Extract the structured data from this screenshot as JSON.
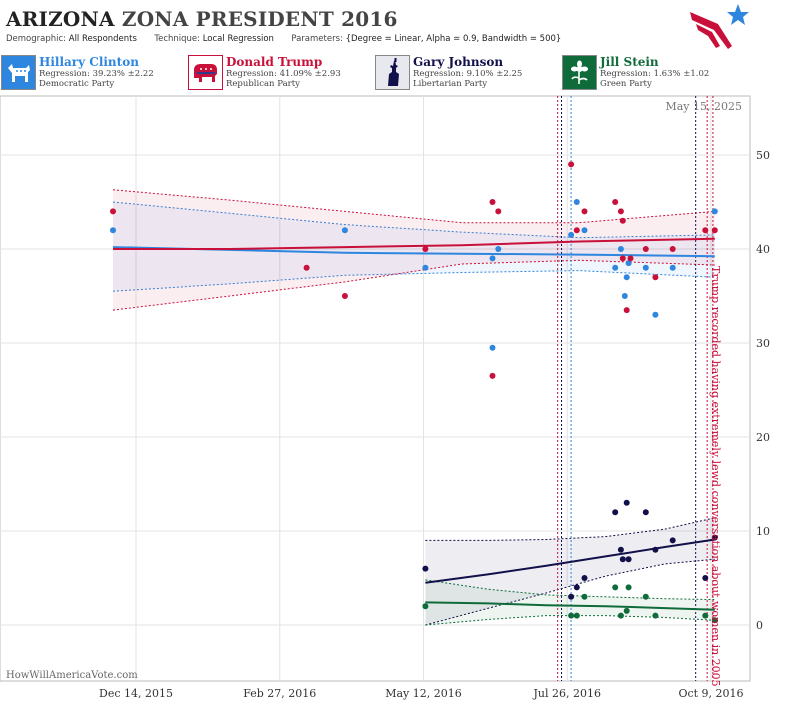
{
  "header": {
    "title_state": "ARIZONA",
    "title_rest": "ZONA PRESIDENT 2016",
    "demographic_label": "Demographic:",
    "demographic_value": "All Respondents",
    "technique_label": "Technique:",
    "technique_value": "Local Regression",
    "parameters_label": "Parameters:",
    "parameters_value": "{Degree = Linear, Alpha = 0.9, Bandwidth = 500}"
  },
  "candidates": [
    {
      "name": "Hillary Clinton",
      "regression": "Regression: 39.23% ±2.22",
      "party": "Democratic Party",
      "color": "#2e86de",
      "icon": "donkey-icon",
      "bg": "#e3eefb"
    },
    {
      "name": "Donald Trump",
      "regression": "Regression: 41.09% ±2.93",
      "party": "Republican Party",
      "color": "#c8103a",
      "icon": "elephant-icon",
      "bg": "#fbe3e9"
    },
    {
      "name": "Gary Johnson",
      "regression": "Regression: 9.10% ±2.25",
      "party": "Libertarian Party",
      "color": "#12104a",
      "icon": "statue-of-liberty-icon",
      "bg": "#e6e6ee"
    },
    {
      "name": "Jill Stein",
      "regression": "Regression: 1.63% ±1.02",
      "party": "Green Party",
      "color": "#0f6b3a",
      "icon": "flower-icon",
      "bg": "#e1f0e6"
    }
  ],
  "chart": {
    "date_label": "May 15, 2025",
    "watermark": "HowWillAmericaVote.com",
    "annotation": "Trump recorded having extremely lewd conversation about women in 2005",
    "annotation_color": "#c8103a"
  },
  "chart_data": {
    "type": "scatter",
    "x_axis": {
      "type": "date",
      "range": [
        "2015-11-05",
        "2016-10-22"
      ],
      "ticks": [
        "2015-12-14",
        "2016-02-27",
        "2016-05-12",
        "2016-07-26",
        "2016-10-09"
      ],
      "tick_labels": [
        "Dec 14, 2015",
        "Feb 27, 2016",
        "May 12, 2016",
        "Jul 26, 2016",
        "Oct 9, 2016"
      ]
    },
    "y_axis": {
      "range": [
        -3,
        56
      ],
      "ticks": [
        0,
        10,
        20,
        30,
        40,
        50
      ],
      "position": "right"
    },
    "grid": true,
    "vertical_markers": [
      {
        "date": "2016-07-21",
        "color": "#c8103a"
      },
      {
        "date": "2016-07-23",
        "color": "#12104a"
      },
      {
        "date": "2016-07-28",
        "color": "#2e86de"
      },
      {
        "date": "2016-10-01",
        "color": "#12104a"
      },
      {
        "date": "2016-10-07",
        "color": "#c8103a"
      },
      {
        "date": "2016-10-10",
        "color": "#c8103a"
      }
    ],
    "series": [
      {
        "name": "Hillary Clinton",
        "color": "#2e86de",
        "points": [
          [
            "2015-12-02",
            42
          ],
          [
            "2016-04-01",
            42
          ],
          [
            "2016-05-13",
            38
          ],
          [
            "2016-06-17",
            29.5
          ],
          [
            "2016-06-17",
            39
          ],
          [
            "2016-06-20",
            40
          ],
          [
            "2016-07-28",
            41.5
          ],
          [
            "2016-07-31",
            45
          ],
          [
            "2016-08-04",
            42
          ],
          [
            "2016-08-20",
            38
          ],
          [
            "2016-08-23",
            40
          ],
          [
            "2016-08-25",
            35
          ],
          [
            "2016-08-26",
            37
          ],
          [
            "2016-08-27",
            38.5
          ],
          [
            "2016-09-05",
            38
          ],
          [
            "2016-09-10",
            33
          ],
          [
            "2016-09-19",
            38
          ],
          [
            "2016-10-11",
            44
          ]
        ],
        "trend": [
          [
            "2015-12-02",
            40.2
          ],
          [
            "2016-02-01",
            39.9
          ],
          [
            "2016-04-01",
            39.6
          ],
          [
            "2016-06-01",
            39.5
          ],
          [
            "2016-08-01",
            39.4
          ],
          [
            "2016-10-11",
            39.23
          ]
        ],
        "band_upper": [
          [
            "2015-12-02",
            45
          ],
          [
            "2016-02-01",
            43.8
          ],
          [
            "2016-04-01",
            42.6
          ],
          [
            "2016-06-01",
            41.8
          ],
          [
            "2016-08-01",
            41.2
          ],
          [
            "2016-10-11",
            41.5
          ]
        ],
        "band_lower": [
          [
            "2015-12-02",
            35.5
          ],
          [
            "2016-02-01",
            36.3
          ],
          [
            "2016-04-01",
            37.2
          ],
          [
            "2016-06-01",
            37.5
          ],
          [
            "2016-08-01",
            37.7
          ],
          [
            "2016-10-11",
            37
          ]
        ]
      },
      {
        "name": "Donald Trump",
        "color": "#c8103a",
        "points": [
          [
            "2015-12-02",
            44
          ],
          [
            "2016-03-12",
            38
          ],
          [
            "2016-04-01",
            35
          ],
          [
            "2016-05-13",
            40
          ],
          [
            "2016-06-17",
            45
          ],
          [
            "2016-06-17",
            26.5
          ],
          [
            "2016-06-20",
            44
          ],
          [
            "2016-07-28",
            49
          ],
          [
            "2016-07-31",
            42
          ],
          [
            "2016-08-04",
            44
          ],
          [
            "2016-08-20",
            45
          ],
          [
            "2016-08-23",
            44
          ],
          [
            "2016-08-24",
            39
          ],
          [
            "2016-08-24",
            43
          ],
          [
            "2016-08-26",
            33.5
          ],
          [
            "2016-08-28",
            39
          ],
          [
            "2016-09-05",
            40
          ],
          [
            "2016-09-10",
            37
          ],
          [
            "2016-09-19",
            40
          ],
          [
            "2016-10-06",
            42
          ],
          [
            "2016-10-11",
            42
          ]
        ],
        "trend": [
          [
            "2015-12-02",
            40
          ],
          [
            "2016-02-01",
            40
          ],
          [
            "2016-04-01",
            40.2
          ],
          [
            "2016-06-01",
            40.4
          ],
          [
            "2016-08-01",
            40.8
          ],
          [
            "2016-10-11",
            41.09
          ]
        ],
        "band_upper": [
          [
            "2015-12-02",
            46.3
          ],
          [
            "2016-02-01",
            45.2
          ],
          [
            "2016-04-01",
            44
          ],
          [
            "2016-06-01",
            42.8
          ],
          [
            "2016-08-01",
            42.8
          ],
          [
            "2016-10-11",
            44
          ]
        ],
        "band_lower": [
          [
            "2015-12-02",
            33.5
          ],
          [
            "2016-02-01",
            35
          ],
          [
            "2016-04-01",
            36.5
          ],
          [
            "2016-06-01",
            38.4
          ],
          [
            "2016-08-01",
            38.8
          ],
          [
            "2016-10-11",
            38.3
          ]
        ]
      },
      {
        "name": "Gary Johnson",
        "color": "#12104a",
        "points": [
          [
            "2016-05-13",
            6
          ],
          [
            "2016-07-28",
            3
          ],
          [
            "2016-07-31",
            4
          ],
          [
            "2016-08-04",
            5
          ],
          [
            "2016-08-20",
            12
          ],
          [
            "2016-08-23",
            8
          ],
          [
            "2016-08-24",
            7
          ],
          [
            "2016-08-26",
            13
          ],
          [
            "2016-08-27",
            7
          ],
          [
            "2016-09-05",
            12
          ],
          [
            "2016-09-10",
            8
          ],
          [
            "2016-09-19",
            9
          ],
          [
            "2016-10-06",
            5
          ],
          [
            "2016-10-11",
            9.3
          ]
        ],
        "trend": [
          [
            "2016-05-13",
            4.5
          ],
          [
            "2016-06-15",
            5.4
          ],
          [
            "2016-07-15",
            6.3
          ],
          [
            "2016-08-15",
            7.3
          ],
          [
            "2016-09-15",
            8.3
          ],
          [
            "2016-10-11",
            9.1
          ]
        ],
        "band_upper": [
          [
            "2016-05-13",
            9
          ],
          [
            "2016-06-15",
            9
          ],
          [
            "2016-07-15",
            9.1
          ],
          [
            "2016-08-15",
            9.4
          ],
          [
            "2016-09-15",
            10.2
          ],
          [
            "2016-10-11",
            11.4
          ]
        ],
        "band_lower": [
          [
            "2016-05-13",
            0
          ],
          [
            "2016-06-15",
            1.8
          ],
          [
            "2016-07-15",
            3.4
          ],
          [
            "2016-08-15",
            5.2
          ],
          [
            "2016-09-15",
            6.5
          ],
          [
            "2016-10-11",
            7
          ]
        ]
      },
      {
        "name": "Jill Stein",
        "color": "#0f6b3a",
        "points": [
          [
            "2016-05-13",
            2
          ],
          [
            "2016-07-28",
            1
          ],
          [
            "2016-07-31",
            1
          ],
          [
            "2016-08-04",
            3
          ],
          [
            "2016-08-20",
            4
          ],
          [
            "2016-08-23",
            1
          ],
          [
            "2016-08-26",
            1.5
          ],
          [
            "2016-08-27",
            4
          ],
          [
            "2016-09-05",
            3
          ],
          [
            "2016-09-10",
            1
          ],
          [
            "2016-10-06",
            1
          ],
          [
            "2016-10-11",
            0.5
          ]
        ],
        "trend": [
          [
            "2016-05-13",
            2.4
          ],
          [
            "2016-06-15",
            2.3
          ],
          [
            "2016-07-15",
            2.1
          ],
          [
            "2016-08-15",
            2.0
          ],
          [
            "2016-09-15",
            1.8
          ],
          [
            "2016-10-11",
            1.63
          ]
        ],
        "band_upper": [
          [
            "2016-05-13",
            4.8
          ],
          [
            "2016-06-15",
            3.8
          ],
          [
            "2016-07-15",
            3.2
          ],
          [
            "2016-08-15",
            3.0
          ],
          [
            "2016-09-15",
            2.8
          ],
          [
            "2016-10-11",
            2.7
          ]
        ],
        "band_lower": [
          [
            "2016-05-13",
            0
          ],
          [
            "2016-06-15",
            0.6
          ],
          [
            "2016-07-15",
            1.0
          ],
          [
            "2016-08-15",
            1.0
          ],
          [
            "2016-09-15",
            0.8
          ],
          [
            "2016-10-11",
            0.5
          ]
        ]
      }
    ]
  }
}
